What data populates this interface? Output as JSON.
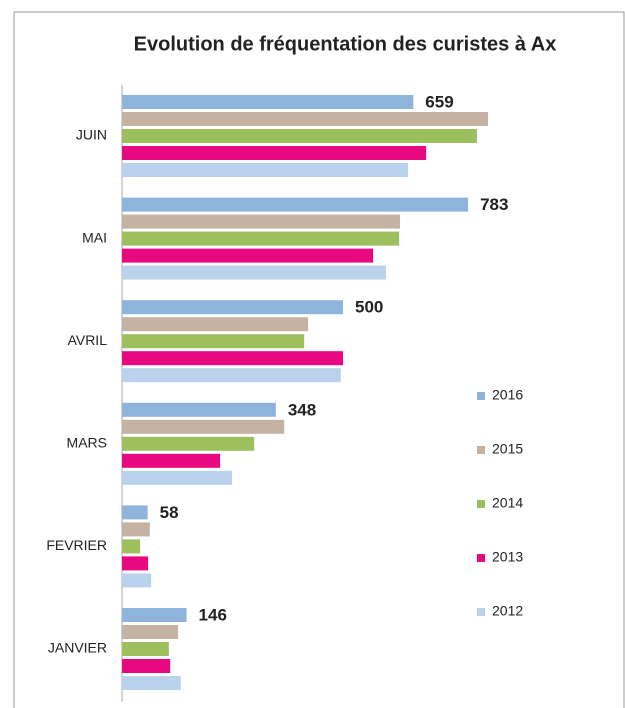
{
  "chart_data": {
    "type": "barh",
    "title": "Evolution de fréquentation des curistes à Ax",
    "categories": [
      "JUIN",
      "MAI",
      "AVRIL",
      "MARS",
      "FEVRIER",
      "JANVIER"
    ],
    "series": [
      {
        "name": "2016",
        "color": "#8eb4dc",
        "values": [
          659,
          783,
          500,
          348,
          58,
          146
        ],
        "labels": true
      },
      {
        "name": "2015",
        "color": "#c4b2a3",
        "values": [
          828,
          629,
          421,
          367,
          63,
          127
        ]
      },
      {
        "name": "2014",
        "color": "#9dbf5e",
        "values": [
          803,
          627,
          412,
          299,
          41,
          106
        ]
      },
      {
        "name": "2013",
        "color": "#e8087f",
        "values": [
          688,
          568,
          500,
          222,
          59,
          109
        ]
      },
      {
        "name": "2012",
        "color": "#bad2eb",
        "values": [
          647,
          597,
          495,
          249,
          66,
          133
        ]
      }
    ],
    "legend": "right"
  }
}
